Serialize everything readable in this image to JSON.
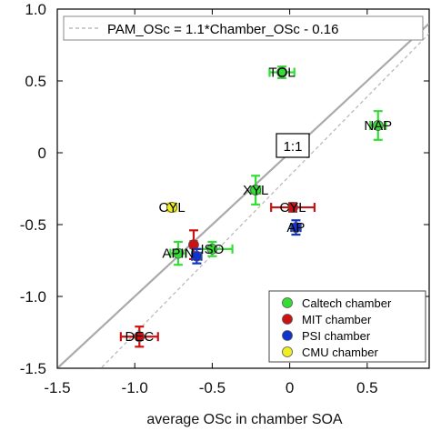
{
  "chart_data": {
    "type": "scatter",
    "xlabel": "average OSc in chamber SOA",
    "ylabel": "",
    "xlim": [
      -1.5,
      0.9
    ],
    "ylim": [
      -1.5,
      1.0
    ],
    "x_ticks": [
      -1.5,
      -1.0,
      -0.5,
      0,
      0.5
    ],
    "y_ticks": [
      1.0,
      0.5,
      0,
      -0.5,
      -1.0,
      -1.5
    ],
    "x_tick_labels": [
      "-1.5",
      "-1.0",
      "-0.5",
      "0",
      "0.5"
    ],
    "y_tick_labels": [
      "1.0",
      "0.5",
      "0",
      "-0.5",
      "-1.0",
      "-1.5"
    ],
    "grid": false,
    "legend_position": "bottom-right",
    "lines": {
      "fit": {
        "label": "PAM_OSc = 1.1*Chamber_OSc - 0.16",
        "slope": 1.1,
        "intercept": -0.16,
        "color": "#bbbbbb",
        "style": "dashed"
      },
      "one_to_one": {
        "label": "1:1",
        "slope": 1,
        "intercept": 0,
        "color": "#aaaaaa",
        "style": "solid"
      }
    },
    "series": [
      {
        "name": "Caltech chamber",
        "color": "#33dd33",
        "points": [
          {
            "label": "TOL",
            "x": -0.05,
            "y": 0.56,
            "xerr": 0.08,
            "yerr": 0.04
          },
          {
            "label": "NAP",
            "x": 0.57,
            "y": 0.19,
            "xerr": 0.05,
            "yerr": 0.1
          },
          {
            "label": "XYL",
            "x": -0.22,
            "y": -0.26,
            "xerr": 0.03,
            "yerr": 0.1
          },
          {
            "label": "ISO",
            "x": -0.5,
            "y": -0.67,
            "xerr": 0.13,
            "yerr": 0.05
          },
          {
            "label": "APIN",
            "x": -0.72,
            "y": -0.7,
            "xerr": 0.05,
            "yerr": 0.08
          }
        ]
      },
      {
        "name": "MIT chamber",
        "color": "#cc1111",
        "points": [
          {
            "label": "CYL",
            "x": 0.02,
            "y": -0.38,
            "xerr": 0.14,
            "yerr": 0.03
          },
          {
            "label": "DEC",
            "x": -0.97,
            "y": -1.28,
            "xerr": 0.12,
            "yerr": 0.07
          },
          {
            "label": "",
            "x": -0.62,
            "y": -0.64,
            "xerr": 0.02,
            "yerr": 0.1
          }
        ]
      },
      {
        "name": "PSI chamber",
        "color": "#1133cc",
        "points": [
          {
            "label": "AP",
            "x": 0.04,
            "y": -0.52,
            "xerr": 0.03,
            "yerr": 0.05
          },
          {
            "label": "",
            "x": -0.6,
            "y": -0.72,
            "xerr": 0.03,
            "yerr": 0.05
          }
        ]
      },
      {
        "name": "CMU chamber",
        "color": "#eeee22",
        "points": [
          {
            "label": "CYL",
            "x": -0.76,
            "y": -0.38,
            "xerr": 0.03,
            "yerr": 0.03
          }
        ]
      }
    ]
  }
}
